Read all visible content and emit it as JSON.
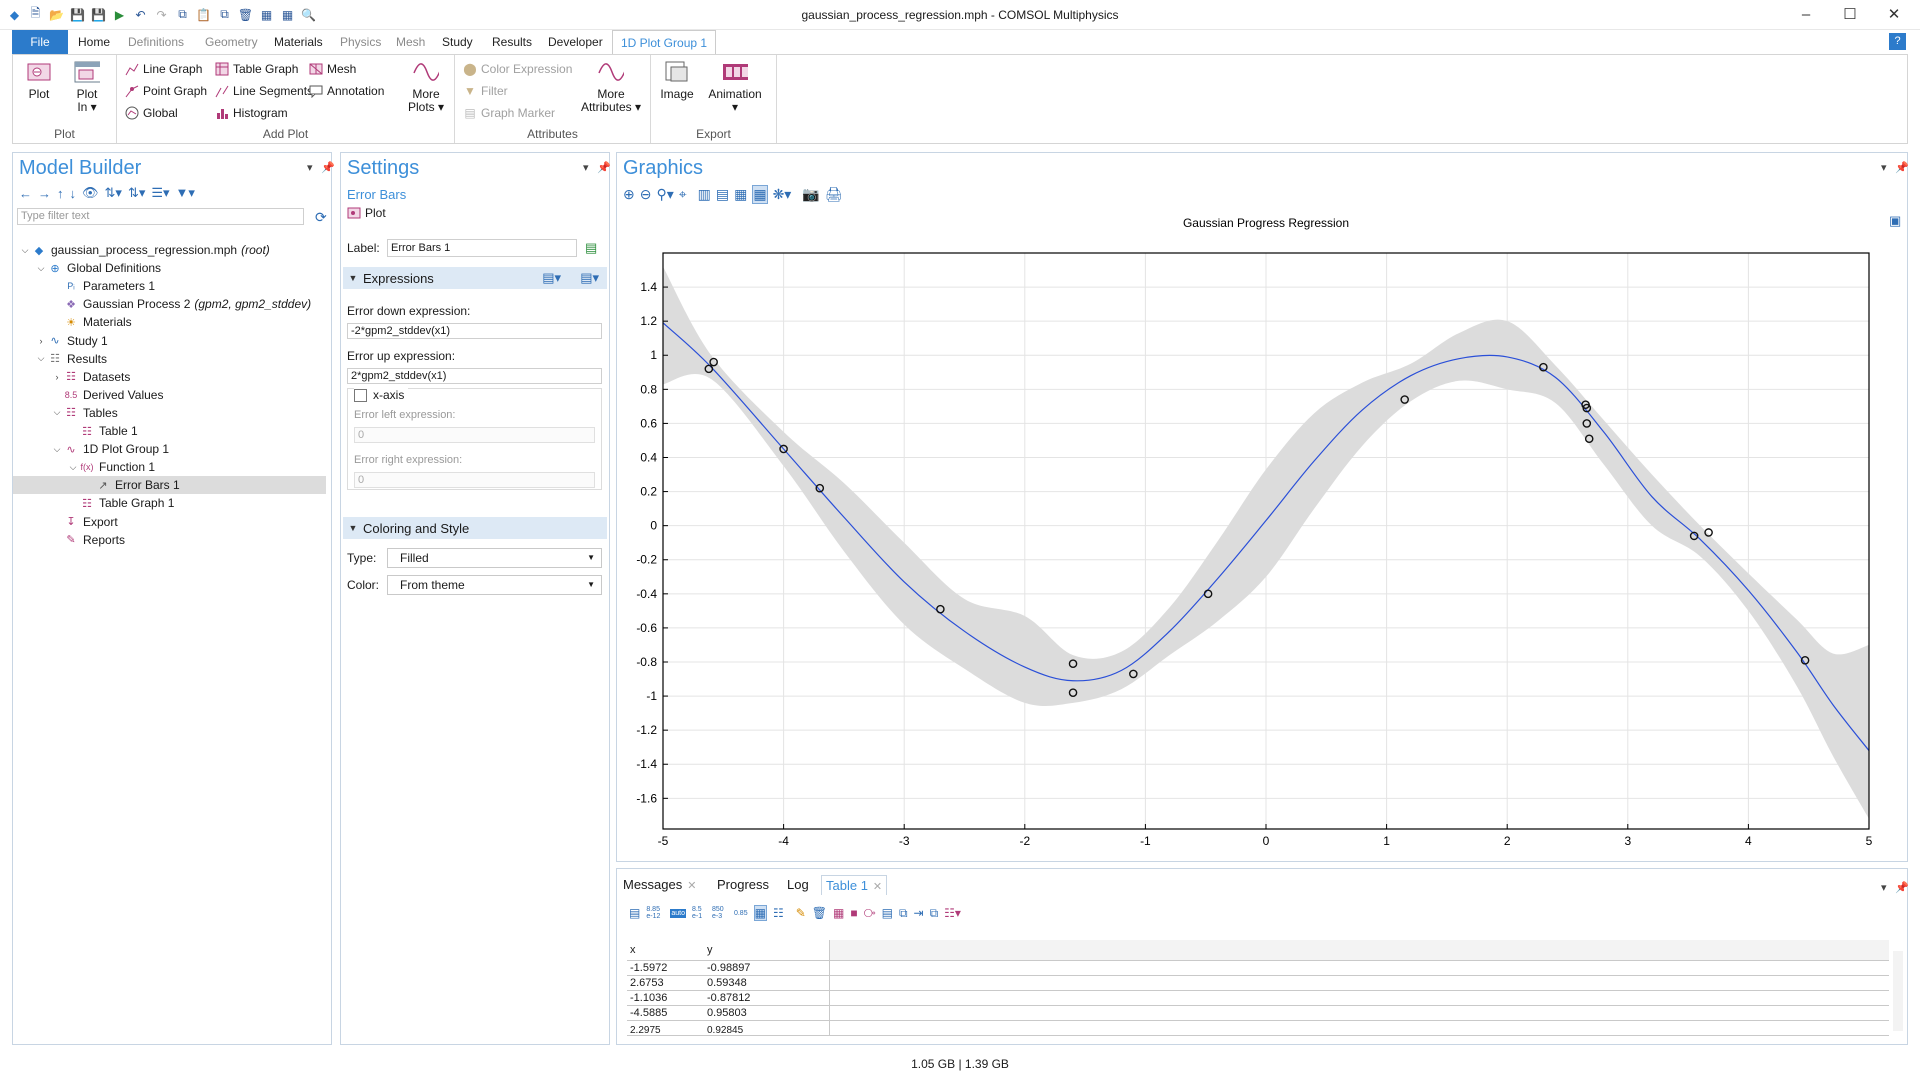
{
  "window": {
    "title": "gaussian_process_regression.mph - COMSOL Multiphysics",
    "minimize": "–",
    "maximize": "☐",
    "close": "✕"
  },
  "menu": {
    "file": "File",
    "tabs": [
      "Home",
      "Definitions",
      "Geometry",
      "Materials",
      "Physics",
      "Mesh",
      "Study",
      "Results",
      "Developer",
      "1D Plot Group 1"
    ],
    "help": "?"
  },
  "ribbon": {
    "plot_group": {
      "label": "Plot",
      "plot": "Plot",
      "plot_in_line1": "Plot",
      "plot_in_line2": "In ▾"
    },
    "add_plot_group": {
      "label": "Add Plot",
      "line_graph": "Line Graph",
      "point_graph": "Point Graph",
      "global": "Global",
      "table_graph": "Table Graph",
      "line_segments": "Line Segments",
      "histogram": "Histogram",
      "mesh": "Mesh",
      "annotation": "Annotation",
      "more_plots_line1": "More",
      "more_plots_line2": "Plots ▾"
    },
    "attributes_group": {
      "label": "Attributes",
      "color_expression": "Color Expression",
      "filter": "Filter",
      "graph_marker": "Graph Marker",
      "more_attr_line1": "More",
      "more_attr_line2": "Attributes ▾"
    },
    "export_group": {
      "label": "Export",
      "image": "Image",
      "animation": "Animation",
      "animation_arrow": "▾"
    }
  },
  "model_builder": {
    "title": "Model Builder",
    "filter_placeholder": "Type filter text",
    "tree": [
      {
        "label": "gaussian_process_regression.mph",
        "suffix": "(root)",
        "level": 0,
        "exp": "⌵",
        "icon": "root-icon"
      },
      {
        "label": "Global Definitions",
        "suffix": "",
        "level": 1,
        "exp": "⌵",
        "icon": "globe-icon"
      },
      {
        "label": "Parameters 1",
        "suffix": "",
        "level": 2,
        "exp": "",
        "icon": "parameters-icon"
      },
      {
        "label": "Gaussian Process 2",
        "suffix": "(gpm2, gpm2_stddev)",
        "level": 2,
        "exp": "",
        "icon": "gaussian-process-icon"
      },
      {
        "label": "Materials",
        "suffix": "",
        "level": 2,
        "exp": "",
        "icon": "materials-icon"
      },
      {
        "label": "Study 1",
        "suffix": "",
        "level": 1,
        "exp": "›",
        "icon": "study-icon"
      },
      {
        "label": "Results",
        "suffix": "",
        "level": 1,
        "exp": "⌵",
        "icon": "results-icon"
      },
      {
        "label": "Datasets",
        "suffix": "",
        "level": 2,
        "exp": "›",
        "icon": "datasets-icon"
      },
      {
        "label": "Derived Values",
        "suffix": "",
        "level": 2,
        "exp": "",
        "icon": "derived-values-icon"
      },
      {
        "label": "Tables",
        "suffix": "",
        "level": 2,
        "exp": "⌵",
        "icon": "tables-icon"
      },
      {
        "label": "Table 1",
        "suffix": "",
        "level": 3,
        "exp": "",
        "icon": "table-icon"
      },
      {
        "label": "1D Plot Group 1",
        "suffix": "",
        "level": 2,
        "exp": "⌵",
        "icon": "plot-group-icon"
      },
      {
        "label": "Function 1",
        "suffix": "",
        "level": 3,
        "exp": "⌵",
        "icon": "function-icon"
      },
      {
        "label": "Error Bars 1",
        "suffix": "",
        "level": 4,
        "exp": "",
        "icon": "error-bars-icon",
        "selected": true
      },
      {
        "label": "Table Graph 1",
        "suffix": "",
        "level": 3,
        "exp": "",
        "icon": "table-graph-icon"
      },
      {
        "label": "Export",
        "suffix": "",
        "level": 2,
        "exp": "",
        "icon": "export-icon"
      },
      {
        "label": "Reports",
        "suffix": "",
        "level": 2,
        "exp": "",
        "icon": "reports-icon"
      }
    ]
  },
  "settings": {
    "title": "Settings",
    "subtitle": "Error Bars",
    "plot_button": "Plot",
    "label_caption": "Label:",
    "label_value": "Error Bars 1",
    "expressions_section": "Expressions",
    "error_down_caption": "Error down expression:",
    "error_down_value": "-2*gpm2_stddev(x1)",
    "error_up_caption": "Error up expression:",
    "error_up_value": "2*gpm2_stddev(x1)",
    "x_axis_checkbox": "x-axis",
    "x_axis_checked": false,
    "error_left_caption": "Error left expression:",
    "error_left_value": "0",
    "error_right_caption": "Error right expression:",
    "error_right_value": "0",
    "coloring_section": "Coloring and Style",
    "type_caption": "Type:",
    "type_value": "Filled",
    "color_caption": "Color:",
    "color_value": "From theme"
  },
  "graphics": {
    "title": "Graphics"
  },
  "chart_data": {
    "type": "line",
    "title": "Gaussian Progress Regression",
    "xlim": [
      -5,
      5
    ],
    "ylim": [
      -1.78,
      1.6
    ],
    "x_ticks": [
      -5,
      -4,
      -3,
      -2,
      -1,
      0,
      1,
      2,
      3,
      4,
      5
    ],
    "y_ticks": [
      -1.6,
      -1.4,
      -1.2,
      -1,
      -0.8,
      -0.6,
      -0.4,
      -0.2,
      0,
      0.2,
      0.4,
      0.6,
      0.8,
      1,
      1.2,
      1.4
    ],
    "grid": true,
    "series": [
      {
        "kind": "mean",
        "color": "#2a4fd8",
        "x": [
          -5,
          -4.6,
          -4,
          -3.5,
          -3,
          -2.5,
          -2,
          -1.6,
          -1.2,
          -0.8,
          -0.4,
          0,
          0.4,
          0.8,
          1.2,
          1.6,
          2,
          2.4,
          2.8,
          3.2,
          3.6,
          4,
          4.4,
          4.7,
          5
        ],
        "y": [
          1.19,
          0.93,
          0.45,
          0.05,
          -0.33,
          -0.62,
          -0.83,
          -0.91,
          -0.85,
          -0.62,
          -0.31,
          0.03,
          0.38,
          0.68,
          0.88,
          0.98,
          0.99,
          0.87,
          0.55,
          0.17,
          -0.08,
          -0.38,
          -0.74,
          -1.05,
          -1.32
        ]
      },
      {
        "kind": "error-band",
        "color": "#dcdcdc",
        "x": [
          -5,
          -4.6,
          -4,
          -3.5,
          -3,
          -2.5,
          -2,
          -1.6,
          -1.2,
          -0.8,
          -0.4,
          0,
          0.4,
          0.8,
          1.2,
          1.6,
          2,
          2.4,
          2.8,
          3.2,
          3.6,
          4,
          4.4,
          4.7,
          5
        ],
        "upper": [
          1.52,
          1.0,
          0.55,
          0.25,
          -0.1,
          -0.43,
          -0.53,
          -0.76,
          -0.74,
          -0.48,
          -0.09,
          0.33,
          0.66,
          0.84,
          0.95,
          1.13,
          1.2,
          0.94,
          0.62,
          0.3,
          0.0,
          -0.28,
          -0.55,
          -0.75,
          -0.7
        ],
        "lower": [
          0.83,
          0.86,
          0.35,
          -0.15,
          -0.58,
          -0.84,
          -1.04,
          -1.04,
          -0.96,
          -0.76,
          -0.56,
          -0.3,
          0.1,
          0.47,
          0.73,
          0.85,
          0.8,
          0.72,
          0.36,
          0.0,
          -0.18,
          -0.5,
          -0.94,
          -1.35,
          -1.72
        ]
      },
      {
        "kind": "points",
        "color": "#111111",
        "x": [
          -4.62,
          -4.58,
          -4.0,
          -3.7,
          -2.7,
          -1.6,
          -1.6,
          -1.1,
          -0.48,
          1.15,
          2.3,
          2.65,
          2.66,
          2.66,
          2.68,
          3.55,
          3.67,
          4.47
        ],
        "y": [
          0.92,
          0.96,
          0.45,
          0.22,
          -0.49,
          -0.81,
          -0.98,
          -0.87,
          -0.4,
          0.74,
          0.93,
          0.71,
          0.69,
          0.6,
          0.51,
          -0.06,
          -0.04,
          -0.79
        ]
      }
    ]
  },
  "bottom_panel": {
    "tabs": [
      {
        "label": "Messages",
        "closable": true
      },
      {
        "label": "Progress",
        "closable": false
      },
      {
        "label": "Log",
        "closable": false
      },
      {
        "label": "Table 1",
        "closable": true,
        "active": true
      }
    ],
    "precision_buttons": [
      "8.85 e-12",
      "8.5 e-1",
      "850 e-3",
      "0.85"
    ],
    "table": {
      "headers": [
        "x",
        "y"
      ],
      "rows": [
        [
          "-1.5972",
          "-0.98897"
        ],
        [
          "2.6753",
          "0.59348"
        ],
        [
          "-1.1036",
          "-0.87812"
        ],
        [
          "-4.5885",
          "0.95803"
        ],
        [
          "2.2975",
          "0.92845"
        ]
      ]
    }
  },
  "status": {
    "memory": "1.05 GB | 1.39 GB"
  }
}
